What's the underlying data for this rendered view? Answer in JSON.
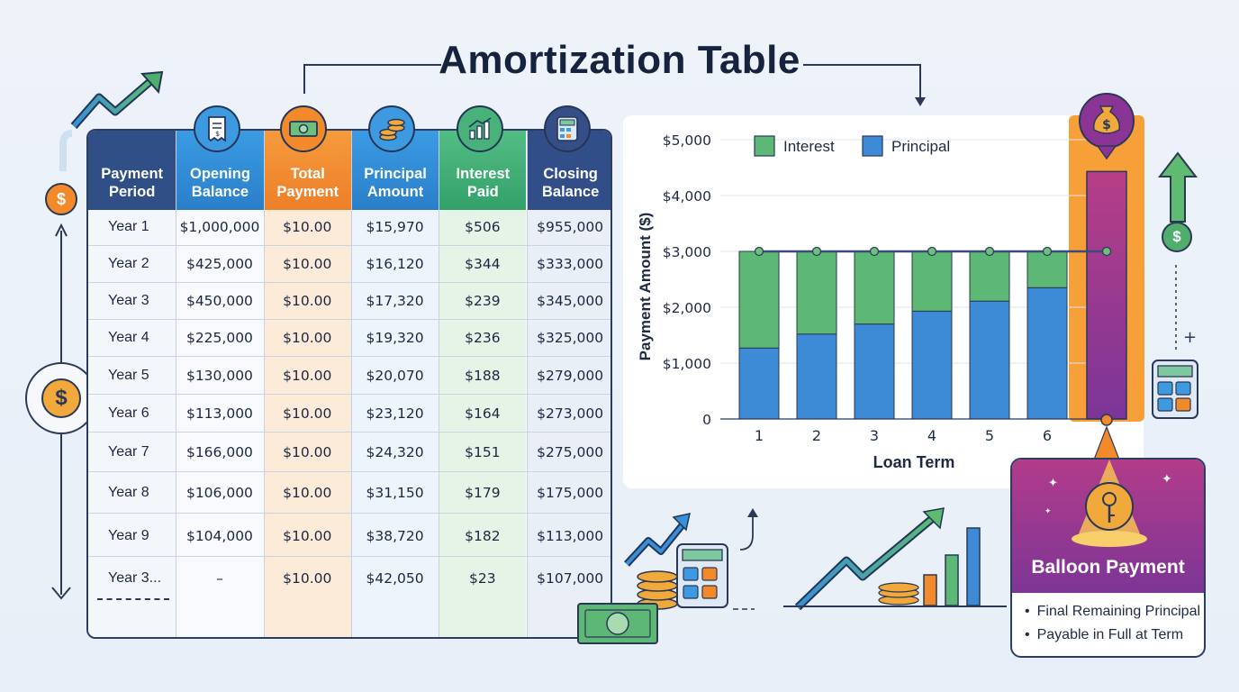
{
  "title": "Amortization Table",
  "table": {
    "headers": [
      [
        "Payment",
        "Period"
      ],
      [
        "Opening",
        "Balance"
      ],
      [
        "Total",
        "Payment"
      ],
      [
        "Principal",
        "Amount"
      ],
      [
        "Interest",
        "Paid"
      ],
      [
        "Closing",
        "Balance"
      ]
    ],
    "header_icons": [
      "receipt-icon",
      "cash-icon",
      "coin-stack-icon",
      "growth-chart-icon",
      "calculator-icon"
    ],
    "header_colors": [
      "#2f4f86",
      "#2f8fd9",
      "#f28a2c",
      "#2d8bd8",
      "#3fb07a",
      "#324e88"
    ],
    "rows": [
      [
        "Year 1",
        "$1,000,000",
        "$10.00",
        "$15,970",
        "$506",
        "$955,000"
      ],
      [
        "Year 2",
        "$425,000",
        "$10.00",
        "$16,120",
        "$344",
        "$333,000"
      ],
      [
        "Year 3",
        "$450,000",
        "$10.00",
        "$17,320",
        "$239",
        "$345,000"
      ],
      [
        "Year 4",
        "$225,000",
        "$10.00",
        "$19,320",
        "$236",
        "$325,000"
      ],
      [
        "Year 5",
        "$130,000",
        "$10.00",
        "$20,070",
        "$188",
        "$279,000"
      ],
      [
        "Year 6",
        "$113,000",
        "$10.00",
        "$23,120",
        "$164",
        "$273,000"
      ],
      [
        "Year 7",
        "$166,000",
        "$10.00",
        "$24,320",
        "$151",
        "$275,000"
      ],
      [
        "Year 8",
        "$106,000",
        "$10.00",
        "$31,150",
        "$179",
        "$175,000"
      ],
      [
        "Year 9",
        "$104,000",
        "$10.00",
        "$38,720",
        "$182",
        "$113,000"
      ],
      [
        "Year 3...",
        "–",
        "$10.00",
        "$42,050",
        "$23",
        "$107,000"
      ]
    ]
  },
  "chart_data": {
    "type": "bar",
    "stacked": true,
    "categories": [
      "1",
      "2",
      "3",
      "4",
      "5",
      "6",
      ""
    ],
    "series": [
      {
        "name": "Principal",
        "color": "#3d8ad6",
        "values": [
          1270,
          1520,
          1700,
          1930,
          2110,
          2350,
          4430
        ]
      },
      {
        "name": "Interest",
        "color": "#5cb874",
        "values": [
          1730,
          1480,
          1300,
          1070,
          890,
          650,
          0
        ]
      }
    ],
    "line": {
      "values": [
        3000,
        3000,
        3000,
        3000,
        3000,
        3000,
        3000
      ],
      "color": "#3a4a7c"
    },
    "xlabel": "Loan Term",
    "ylabel": "Payment Amount ($)",
    "ylim": [
      0,
      5000
    ],
    "yticks": [
      "0",
      "$1,000",
      "$2,000",
      "$3,000",
      "$4,000",
      "$5,000"
    ],
    "ytick_values": [
      0,
      1000,
      2000,
      3000,
      4000,
      5000
    ],
    "legend": [
      "Interest",
      "Principal"
    ],
    "legend_position": "top-left",
    "grid": true,
    "highlight_category_index": 6
  },
  "balloon": {
    "title": "Balloon Payment",
    "items": [
      "Final Remaining Principal",
      "Payable in Full at Term"
    ]
  }
}
